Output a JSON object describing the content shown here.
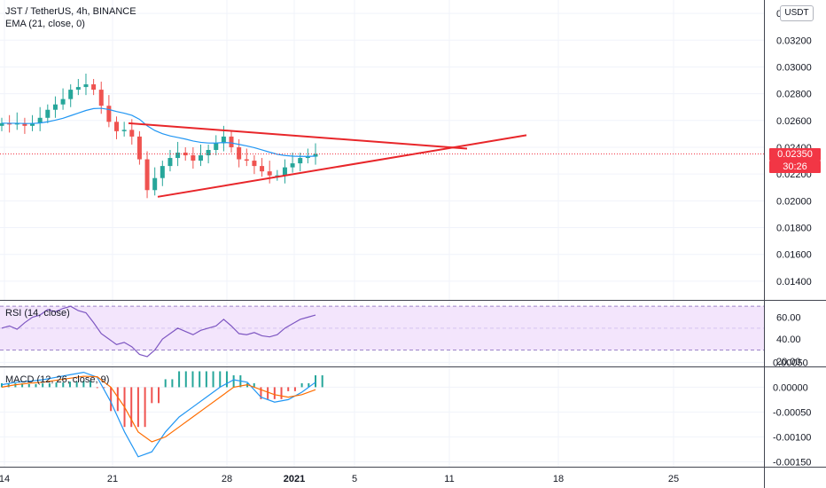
{
  "header": {
    "symbol_line": "JST / TetherUS, 4h, BINANCE",
    "ema_label": "EMA (21, close, 0)",
    "currency_button": "USDT"
  },
  "price_badges": {
    "last_price": "0.02350",
    "countdown": "30:26"
  },
  "colors": {
    "bull": "#26a69a",
    "bear": "#ef5350",
    "ema": "#2196f3",
    "trendline": "#e8262a",
    "rsi": "#7e57c2",
    "rsi_band": "#f3e5fc",
    "macd_line": "#2196f3",
    "signal_line": "#ff6d00",
    "hist_pos": "#26a69a",
    "hist_neg": "#ef5350",
    "badge": "#f23645"
  },
  "chart_data": [
    {
      "type": "candlestick",
      "title": "JST / TetherUS, 4h, BINANCE",
      "ylim": [
        0.0126,
        0.035
      ],
      "y_ticks": [
        "0.01400",
        "0.01600",
        "0.01800",
        "0.02000",
        "0.02200",
        "0.02400",
        "0.02600",
        "0.02800",
        "0.03000",
        "0.03200",
        "0.03400"
      ],
      "x_tick_labels": [
        "14",
        "21",
        "28",
        "2021",
        "5",
        "11",
        "18",
        "25"
      ],
      "candles_approx_close": [
        0.0258,
        0.0257,
        0.0258,
        0.0256,
        0.0258,
        0.0262,
        0.0268,
        0.0272,
        0.0276,
        0.0283,
        0.0285,
        0.0287,
        0.0283,
        0.0271,
        0.0259,
        0.0252,
        0.0253,
        0.0248,
        0.0231,
        0.0208,
        0.0217,
        0.0226,
        0.0232,
        0.0236,
        0.0234,
        0.023,
        0.0234,
        0.0238,
        0.0243,
        0.0248,
        0.024,
        0.0231,
        0.023,
        0.0226,
        0.0222,
        0.0219,
        0.0219,
        0.0225,
        0.0228,
        0.0232,
        0.0233,
        0.0235
      ],
      "ema": {
        "label": "EMA (21, close, 0)",
        "period": 21
      },
      "trendlines": [
        {
          "name": "upper",
          "from": {
            "date": "2020-12-21",
            "price": 0.0258
          },
          "to": {
            "date": "2021-01-12",
            "price": 0.0239
          }
        },
        {
          "name": "lower",
          "from": {
            "date": "2020-12-23",
            "price": 0.0203
          },
          "to": {
            "date": "2021-01-15",
            "price": 0.0249
          }
        }
      ],
      "last_price": 0.0235
    },
    {
      "type": "line",
      "title": "RSI (14, close)",
      "ylim": [
        15,
        75
      ],
      "y_ticks": [
        "20.00",
        "40.00",
        "60.00"
      ],
      "band": [
        30,
        70
      ],
      "values": [
        50,
        52,
        49,
        55,
        60,
        62,
        67,
        65,
        68,
        70,
        66,
        64,
        55,
        45,
        40,
        35,
        37,
        33,
        26,
        24,
        30,
        40,
        45,
        50,
        47,
        44,
        48,
        50,
        52,
        58,
        52,
        45,
        44,
        46,
        43,
        42,
        44,
        50,
        54,
        58,
        60,
        62
      ]
    },
    {
      "type": "line",
      "title": "MACD (12, 26, close, 9)",
      "ylim": [
        -0.0016,
        0.0004
      ],
      "y_ticks": [
        "0.00050",
        "0.00000",
        "-0.00050",
        "-0.00100",
        "-0.00150"
      ],
      "series": [
        {
          "values": [
            5e-05,
            0.0001,
            0.00012,
            0.00015,
            0.0002,
            0.00025,
            0.0003,
            0.0002,
            -0.0003,
            -0.0009,
            -0.0014,
            -0.0013,
            -0.0009,
            -0.0006,
            -0.0004,
            -0.0002,
            0.0,
            0.00015,
            0.0001,
            -0.0002,
            -0.0003,
            -0.00025,
            -0.0001,
            0.0001
          ]
        },
        {
          "values": [
            0.0,
            5e-05,
            8e-05,
            0.0001,
            0.00014,
            0.00018,
            0.00022,
            0.00021,
            0.0,
            -0.0004,
            -0.0009,
            -0.0011,
            -0.001,
            -0.0008,
            -0.0006,
            -0.0004,
            -0.0002,
            0.0,
            5e-05,
            -5e-05,
            -0.00015,
            -0.0002,
            -0.00015,
            -5e-05
          ]
        }
      ]
    }
  ],
  "indicators": {
    "rsi_label": "RSI (14, close)",
    "macd_label": "MACD (12, 26, close, 9)"
  }
}
